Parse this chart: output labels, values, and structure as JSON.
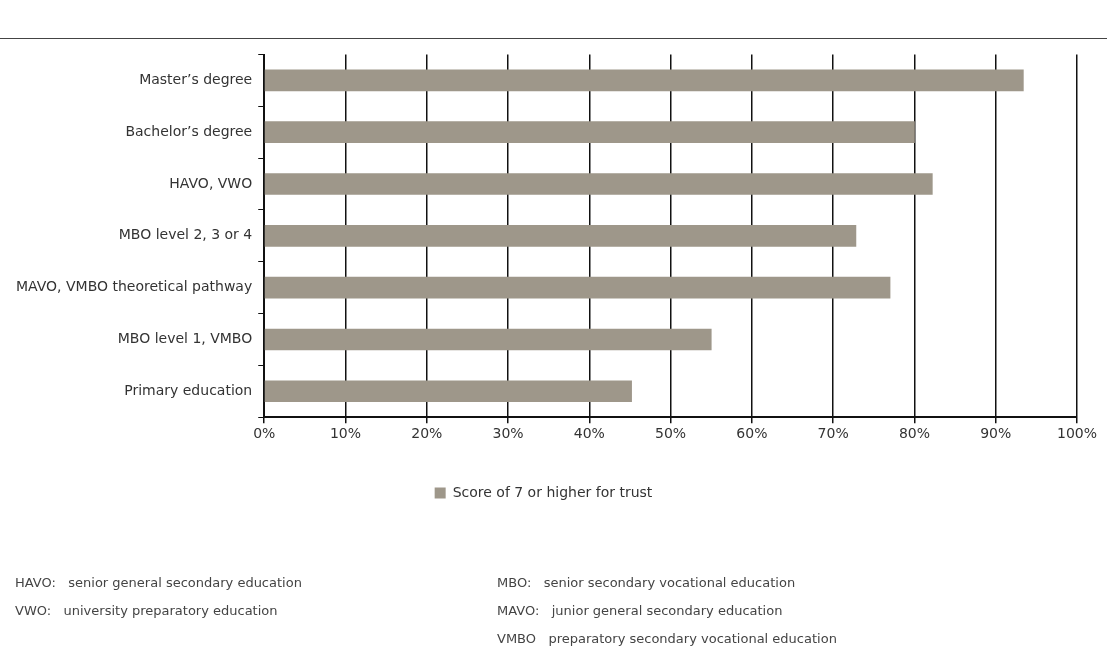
{
  "chart_data": {
    "type": "bar",
    "orientation": "horizontal",
    "categories": [
      "Master’s degree",
      "Bachelor’s degree",
      "HAVO, VWO",
      "MBO level 2, 3 or 4",
      "MAVO, VMBO theoretical pathway",
      "MBO level 1, VMBO",
      "Primary education"
    ],
    "series": [
      {
        "name": "Score of 7 or higher for trust",
        "color": "#9e978a",
        "values": [
          93.4,
          80.0,
          82.2,
          72.8,
          77.0,
          55.0,
          45.2
        ]
      }
    ],
    "xlim": [
      0,
      100
    ],
    "xticks": [
      {
        "value": 0,
        "label": "0%"
      },
      {
        "value": 10,
        "label": "10%"
      },
      {
        "value": 20,
        "label": "20%"
      },
      {
        "value": 30,
        "label": "30%"
      },
      {
        "value": 40,
        "label": "40%"
      },
      {
        "value": 50,
        "label": "50%"
      },
      {
        "value": 60,
        "label": "60%"
      },
      {
        "value": 70,
        "label": "70%"
      },
      {
        "value": 80,
        "label": "80%"
      },
      {
        "value": 90,
        "label": "90%"
      },
      {
        "value": 100,
        "label": "100%"
      }
    ],
    "grid": "x",
    "legend": "bottom",
    "annotations": [
      "HAVO:   senior general secondary education",
      "VWO:   university preparatory education",
      "MBO:   senior secondary vocational education",
      "MAVO:   junior general secondary education",
      "VMBO   preparatory secondary vocational education"
    ]
  }
}
